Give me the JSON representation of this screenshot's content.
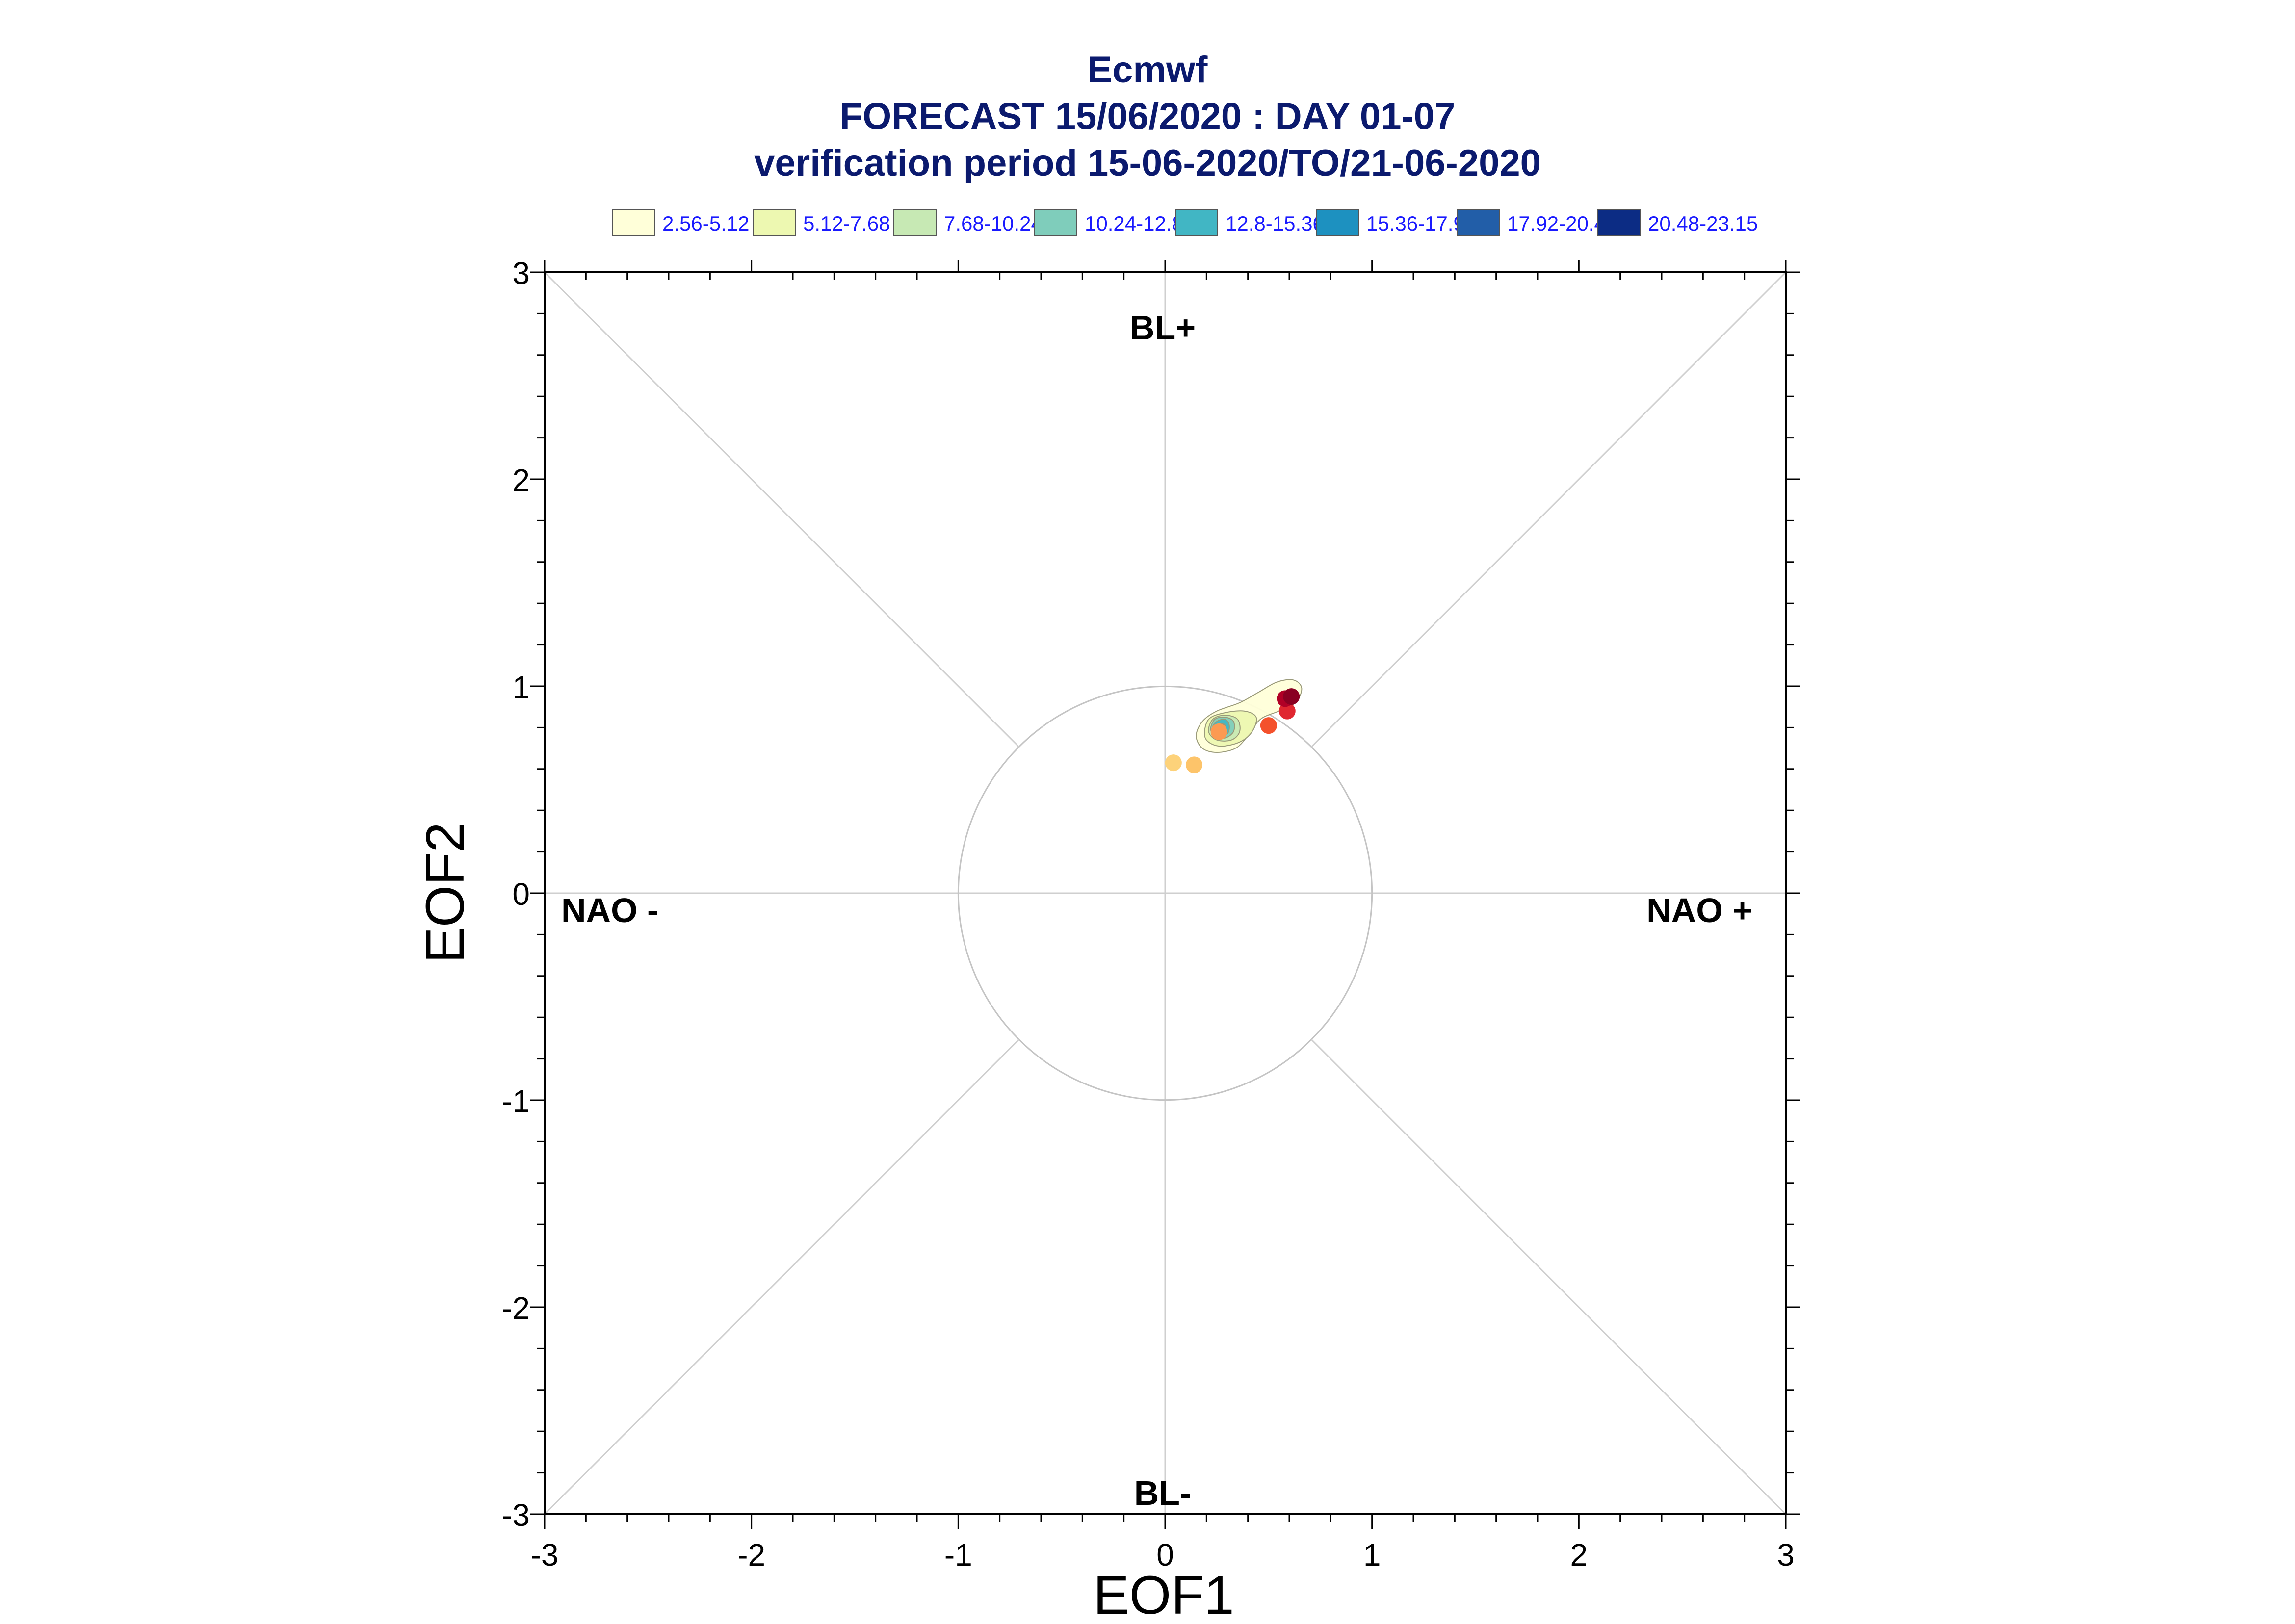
{
  "header": {
    "title": "Ecmwf",
    "subtitle": "FORECAST 15/06/2020 : DAY 01-07",
    "period": "verification period 15-06-2020/TO/21-06-2020"
  },
  "legend": [
    {
      "label": "2.56-5.12",
      "color": "#ffffd9"
    },
    {
      "label": "5.12-7.68",
      "color": "#edf8b1"
    },
    {
      "label": "7.68-10.24",
      "color": "#c7e9b4"
    },
    {
      "label": "10.24-12.8",
      "color": "#7fcdbb"
    },
    {
      "label": "12.8-15.36",
      "color": "#41b6c4"
    },
    {
      "label": "15.36-17.92",
      "color": "#1d91c0"
    },
    {
      "label": "17.92-20.48",
      "color": "#225ea8"
    },
    {
      "label": "20.48-23.15",
      "color": "#0c2c84"
    }
  ],
  "regions": {
    "top": "BL+",
    "bottom": "BL-",
    "left": "NAO -",
    "right": "NAO +"
  },
  "chart_data": {
    "type": "scatter",
    "xlabel": "EOF1",
    "ylabel": "EOF2",
    "xlim": [
      -3,
      3
    ],
    "ylim": [
      -3,
      3
    ],
    "xticks": [
      "-3",
      "-2",
      "-1",
      "0",
      "1",
      "2",
      "3"
    ],
    "yticks": [
      "-3",
      "-2",
      "-1",
      "0",
      "1",
      "2",
      "3"
    ],
    "unit_circle_radius": 1,
    "points": [
      {
        "x": 0.04,
        "y": 0.63,
        "color": "#fdd27a"
      },
      {
        "x": 0.14,
        "y": 0.62,
        "color": "#fdc46a"
      },
      {
        "x": 0.26,
        "y": 0.78,
        "color": "#fc9a52"
      },
      {
        "x": 0.5,
        "y": 0.81,
        "color": "#f4512c"
      },
      {
        "x": 0.59,
        "y": 0.88,
        "color": "#e02630"
      },
      {
        "x": 0.58,
        "y": 0.94,
        "color": "#b10026"
      },
      {
        "x": 0.61,
        "y": 0.95,
        "color": "#8a0022"
      }
    ],
    "density_contours": [
      {
        "level": "2.56-5.12",
        "color": "#ffffd9",
        "points": [
          [
            0.15,
            0.76
          ],
          [
            0.18,
            0.83
          ],
          [
            0.25,
            0.88
          ],
          [
            0.36,
            0.92
          ],
          [
            0.45,
            0.97
          ],
          [
            0.54,
            1.02
          ],
          [
            0.62,
            1.03
          ],
          [
            0.66,
            0.99
          ],
          [
            0.63,
            0.92
          ],
          [
            0.55,
            0.88
          ],
          [
            0.46,
            0.84
          ],
          [
            0.4,
            0.76
          ],
          [
            0.34,
            0.7
          ],
          [
            0.25,
            0.68
          ],
          [
            0.18,
            0.7
          ]
        ]
      },
      {
        "level": "5.12-7.68",
        "color": "#edf8b1",
        "points": [
          [
            0.19,
            0.77
          ],
          [
            0.21,
            0.84
          ],
          [
            0.28,
            0.87
          ],
          [
            0.38,
            0.88
          ],
          [
            0.44,
            0.85
          ],
          [
            0.42,
            0.78
          ],
          [
            0.36,
            0.73
          ],
          [
            0.27,
            0.71
          ],
          [
            0.21,
            0.73
          ]
        ]
      },
      {
        "level": "7.68-10.24",
        "color": "#c7e9b4",
        "points": [
          [
            0.21,
            0.78
          ],
          [
            0.23,
            0.84
          ],
          [
            0.29,
            0.86
          ],
          [
            0.35,
            0.84
          ],
          [
            0.36,
            0.78
          ],
          [
            0.32,
            0.74
          ],
          [
            0.25,
            0.74
          ]
        ]
      },
      {
        "level": "10.24-12.8",
        "color": "#7fcdbb",
        "points": [
          [
            0.22,
            0.79
          ],
          [
            0.24,
            0.84
          ],
          [
            0.29,
            0.85
          ],
          [
            0.33,
            0.83
          ],
          [
            0.33,
            0.78
          ],
          [
            0.29,
            0.75
          ],
          [
            0.25,
            0.76
          ]
        ]
      },
      {
        "level": "12.8-15.36",
        "color": "#41b6c4",
        "points": [
          [
            0.23,
            0.8
          ],
          [
            0.25,
            0.83
          ],
          [
            0.29,
            0.84
          ],
          [
            0.31,
            0.81
          ],
          [
            0.3,
            0.77
          ],
          [
            0.26,
            0.77
          ]
        ]
      },
      {
        "level": "15.36-17.92",
        "color": "#1d91c0",
        "points": [
          [
            0.25,
            0.8
          ],
          [
            0.27,
            0.82
          ],
          [
            0.29,
            0.81
          ],
          [
            0.28,
            0.78
          ],
          [
            0.26,
            0.78
          ]
        ]
      }
    ]
  }
}
